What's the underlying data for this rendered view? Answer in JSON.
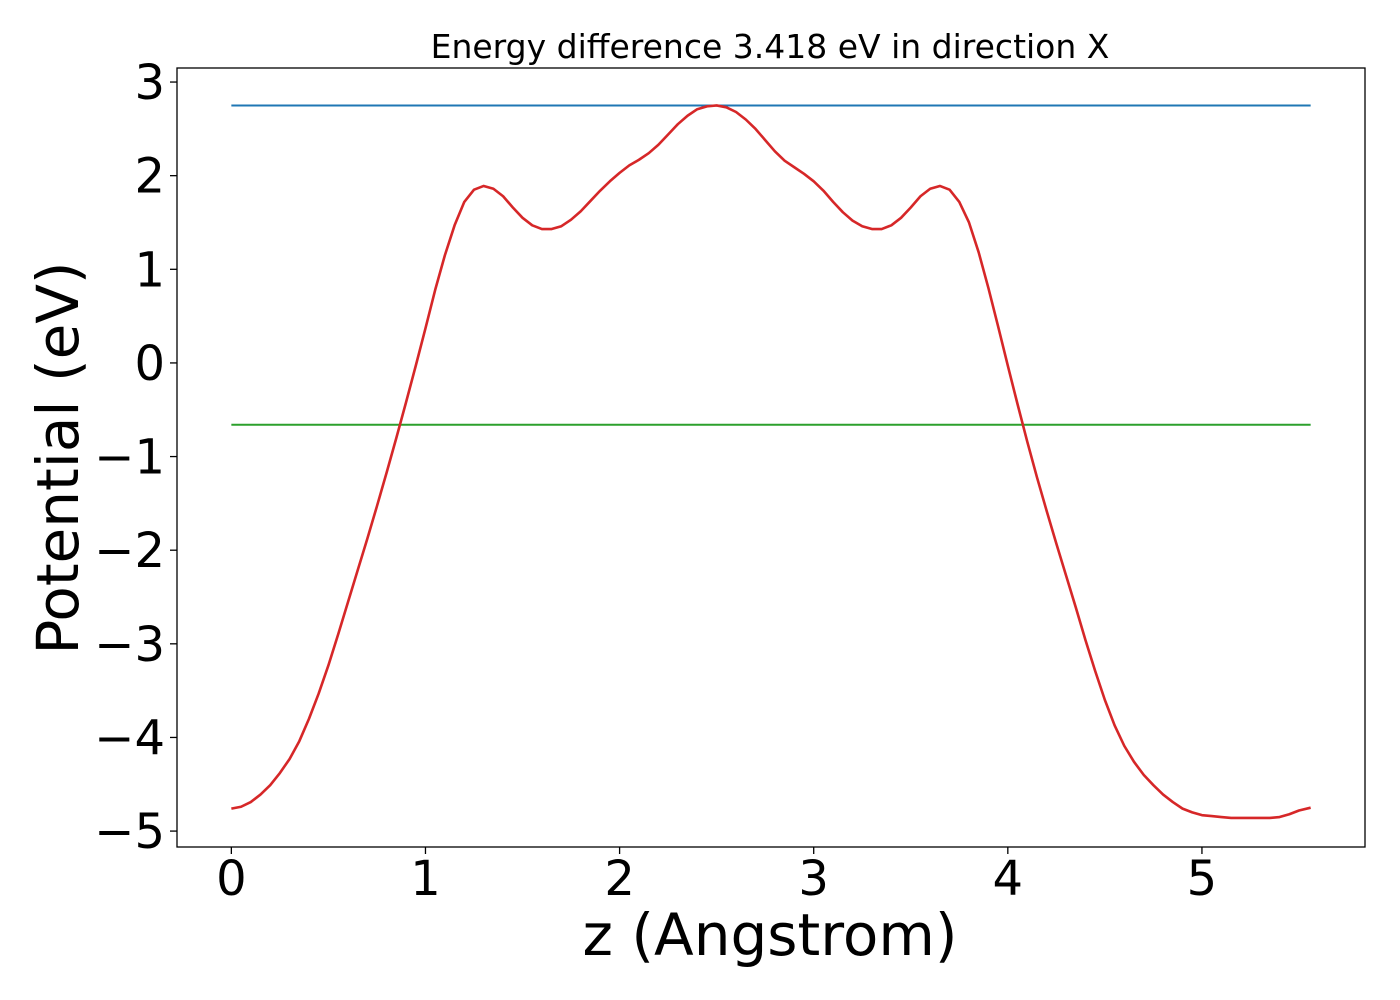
{
  "chart_data": {
    "type": "line",
    "title": "Energy difference 3.418 eV in direction X",
    "xlabel": "z (Angstrom)",
    "ylabel": "Potential (eV)",
    "xlim": [
      -0.28,
      5.84
    ],
    "ylim": [
      -5.17,
      3.15
    ],
    "xticks": [
      0,
      1,
      2,
      3,
      4,
      5
    ],
    "xtick_labels": [
      "0",
      "1",
      "2",
      "3",
      "4",
      "5"
    ],
    "yticks": [
      -5,
      -4,
      -3,
      -2,
      -1,
      0,
      1,
      2,
      3
    ],
    "ytick_labels": [
      "−5",
      "−4",
      "−3",
      "−2",
      "−1",
      "0",
      "1",
      "2",
      "3"
    ],
    "grid": false,
    "legend": null,
    "series": [
      {
        "color": "#d62728",
        "x": [
          0.0,
          0.05,
          0.1,
          0.15,
          0.2,
          0.25,
          0.3,
          0.35,
          0.4,
          0.45,
          0.5,
          0.55,
          0.6,
          0.65,
          0.7,
          0.75,
          0.8,
          0.85,
          0.9,
          0.95,
          1.0,
          1.05,
          1.1,
          1.15,
          1.2,
          1.25,
          1.3,
          1.35,
          1.4,
          1.45,
          1.5,
          1.55,
          1.6,
          1.65,
          1.7,
          1.75,
          1.8,
          1.85,
          1.9,
          1.95,
          2.0,
          2.05,
          2.1,
          2.15,
          2.2,
          2.25,
          2.3,
          2.35,
          2.4,
          2.45,
          2.5,
          2.55,
          2.6,
          2.65,
          2.7,
          2.75,
          2.8,
          2.85,
          2.9,
          2.95,
          3.0,
          3.05,
          3.1,
          3.15,
          3.2,
          3.25,
          3.3,
          3.35,
          3.4,
          3.45,
          3.5,
          3.55,
          3.6,
          3.65,
          3.7,
          3.75,
          3.8,
          3.85,
          3.9,
          3.95,
          4.0,
          4.05,
          4.1,
          4.15,
          4.2,
          4.25,
          4.3,
          4.35,
          4.4,
          4.45,
          4.5,
          4.55,
          4.6,
          4.65,
          4.7,
          4.75,
          4.8,
          4.85,
          4.9,
          4.95,
          5.0,
          5.05,
          5.1,
          5.15,
          5.2,
          5.25,
          5.3,
          5.35,
          5.4,
          5.45,
          5.5,
          5.56
        ],
        "y": [
          -4.76,
          -4.74,
          -4.69,
          -4.61,
          -4.51,
          -4.38,
          -4.23,
          -4.04,
          -3.8,
          -3.53,
          -3.23,
          -2.9,
          -2.56,
          -2.22,
          -1.88,
          -1.53,
          -1.17,
          -0.8,
          -0.42,
          -0.03,
          0.37,
          0.78,
          1.15,
          1.47,
          1.72,
          1.85,
          1.89,
          1.86,
          1.78,
          1.66,
          1.55,
          1.47,
          1.43,
          1.43,
          1.46,
          1.53,
          1.62,
          1.73,
          1.84,
          1.94,
          2.03,
          2.11,
          2.17,
          2.24,
          2.33,
          2.44,
          2.55,
          2.64,
          2.71,
          2.74,
          2.75,
          2.73,
          2.68,
          2.6,
          2.5,
          2.38,
          2.26,
          2.16,
          2.09,
          2.02,
          1.94,
          1.84,
          1.72,
          1.61,
          1.52,
          1.46,
          1.43,
          1.43,
          1.47,
          1.55,
          1.66,
          1.78,
          1.86,
          1.89,
          1.85,
          1.72,
          1.5,
          1.18,
          0.8,
          0.39,
          -0.03,
          -0.44,
          -0.84,
          -1.22,
          -1.58,
          -1.93,
          -2.27,
          -2.61,
          -2.96,
          -3.29,
          -3.6,
          -3.87,
          -4.09,
          -4.26,
          -4.4,
          -4.51,
          -4.61,
          -4.69,
          -4.76,
          -4.8,
          -4.83,
          -4.84,
          -4.85,
          -4.86,
          -4.86,
          -4.86,
          -4.86,
          -4.86,
          -4.85,
          -4.82,
          -4.78,
          -4.75
        ]
      },
      {
        "color": "#1f77b4",
        "x": [
          0.0,
          5.56
        ],
        "y": [
          2.75,
          2.75
        ]
      },
      {
        "color": "#2ca02c",
        "x": [
          0.0,
          5.56
        ],
        "y": [
          -0.66,
          -0.66
        ]
      }
    ]
  }
}
